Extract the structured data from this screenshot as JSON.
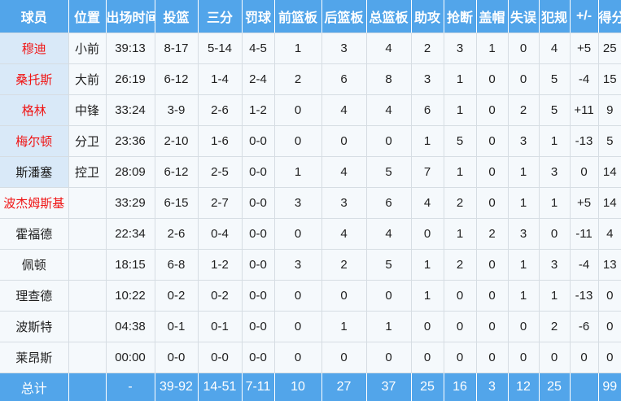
{
  "colors": {
    "header_bg": "#52a5ea",
    "starter_name_bg": "#d9e9f8",
    "cell_bg": "#f5f9fc",
    "grid_line": "#d6dde3",
    "player_highlight_red": "#f01414",
    "text_dark": "#1f1f1f",
    "header_text": "#ffffff"
  },
  "table": {
    "columns": [
      "球员",
      "位置",
      "出场时间",
      "投篮",
      "三分",
      "罚球",
      "前篮板",
      "后篮板",
      "总篮板",
      "助攻",
      "抢断",
      "盖帽",
      "失误",
      "犯规",
      "+/-",
      "得分"
    ],
    "rows": [
      {
        "name": "穆迪",
        "name_red": true,
        "starter": true,
        "pos": "小前",
        "time": "39:13",
        "fg": "8-17",
        "tp": "5-14",
        "ft": "4-5",
        "oreb": "1",
        "dreb": "3",
        "treb": "4",
        "ast": "2",
        "stl": "3",
        "blk": "1",
        "tov": "0",
        "pf": "4",
        "pm": "+5",
        "pts": "25"
      },
      {
        "name": "桑托斯",
        "name_red": true,
        "starter": true,
        "pos": "大前",
        "time": "26:19",
        "fg": "6-12",
        "tp": "1-4",
        "ft": "2-4",
        "oreb": "2",
        "dreb": "6",
        "treb": "8",
        "ast": "3",
        "stl": "1",
        "blk": "0",
        "tov": "0",
        "pf": "5",
        "pm": "-4",
        "pts": "15"
      },
      {
        "name": "格林",
        "name_red": true,
        "starter": true,
        "pos": "中锋",
        "time": "33:24",
        "fg": "3-9",
        "tp": "2-6",
        "ft": "1-2",
        "oreb": "0",
        "dreb": "4",
        "treb": "4",
        "ast": "6",
        "stl": "1",
        "blk": "0",
        "tov": "2",
        "pf": "5",
        "pm": "+11",
        "pts": "9"
      },
      {
        "name": "梅尔顿",
        "name_red": true,
        "starter": true,
        "pos": "分卫",
        "time": "23:36",
        "fg": "2-10",
        "tp": "1-6",
        "ft": "0-0",
        "oreb": "0",
        "dreb": "0",
        "treb": "0",
        "ast": "1",
        "stl": "5",
        "blk": "0",
        "tov": "3",
        "pf": "1",
        "pm": "-13",
        "pts": "5"
      },
      {
        "name": "斯潘塞",
        "name_red": false,
        "starter": true,
        "pos": "控卫",
        "time": "28:09",
        "fg": "6-12",
        "tp": "2-5",
        "ft": "0-0",
        "oreb": "1",
        "dreb": "4",
        "treb": "5",
        "ast": "7",
        "stl": "1",
        "blk": "0",
        "tov": "1",
        "pf": "3",
        "pm": "0",
        "pts": "14"
      },
      {
        "name": "波杰姆斯基",
        "name_red": true,
        "starter": false,
        "pos": "",
        "time": "33:29",
        "fg": "6-15",
        "tp": "2-7",
        "ft": "0-0",
        "oreb": "3",
        "dreb": "3",
        "treb": "6",
        "ast": "4",
        "stl": "2",
        "blk": "0",
        "tov": "1",
        "pf": "1",
        "pm": "+5",
        "pts": "14"
      },
      {
        "name": "霍福德",
        "name_red": false,
        "starter": false,
        "pos": "",
        "time": "22:34",
        "fg": "2-6",
        "tp": "0-4",
        "ft": "0-0",
        "oreb": "0",
        "dreb": "4",
        "treb": "4",
        "ast": "0",
        "stl": "1",
        "blk": "2",
        "tov": "3",
        "pf": "0",
        "pm": "-11",
        "pts": "4"
      },
      {
        "name": "佩顿",
        "name_red": false,
        "starter": false,
        "pos": "",
        "time": "18:15",
        "fg": "6-8",
        "tp": "1-2",
        "ft": "0-0",
        "oreb": "3",
        "dreb": "2",
        "treb": "5",
        "ast": "1",
        "stl": "2",
        "blk": "0",
        "tov": "1",
        "pf": "3",
        "pm": "-4",
        "pts": "13"
      },
      {
        "name": "理查德",
        "name_red": false,
        "starter": false,
        "pos": "",
        "time": "10:22",
        "fg": "0-2",
        "tp": "0-2",
        "ft": "0-0",
        "oreb": "0",
        "dreb": "0",
        "treb": "0",
        "ast": "1",
        "stl": "0",
        "blk": "0",
        "tov": "1",
        "pf": "1",
        "pm": "-13",
        "pts": "0"
      },
      {
        "name": "波斯特",
        "name_red": false,
        "starter": false,
        "pos": "",
        "time": "04:38",
        "fg": "0-1",
        "tp": "0-1",
        "ft": "0-0",
        "oreb": "0",
        "dreb": "1",
        "treb": "1",
        "ast": "0",
        "stl": "0",
        "blk": "0",
        "tov": "0",
        "pf": "2",
        "pm": "-6",
        "pts": "0"
      },
      {
        "name": "莱昂斯",
        "name_red": false,
        "starter": false,
        "pos": "",
        "time": "00:00",
        "fg": "0-0",
        "tp": "0-0",
        "ft": "0-0",
        "oreb": "0",
        "dreb": "0",
        "treb": "0",
        "ast": "0",
        "stl": "0",
        "blk": "0",
        "tov": "0",
        "pf": "0",
        "pm": "0",
        "pts": "0"
      }
    ],
    "total": {
      "name": "总计",
      "pos": "",
      "time": "-",
      "fg": "39-92",
      "tp": "14-51",
      "ft": "7-11",
      "oreb": "10",
      "dreb": "27",
      "treb": "37",
      "ast": "25",
      "stl": "16",
      "blk": "3",
      "tov": "12",
      "pf": "25",
      "pm": "",
      "pts": "99"
    }
  }
}
